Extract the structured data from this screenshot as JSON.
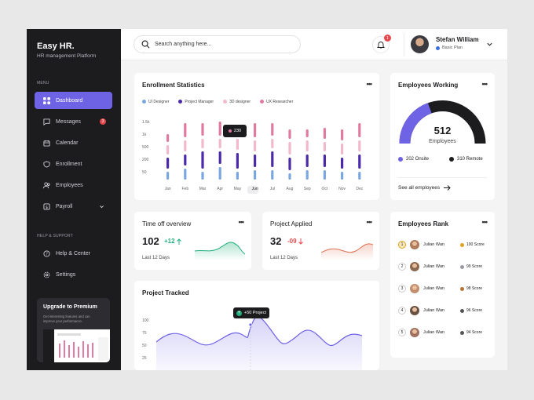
{
  "sidebar": {
    "brand": "Easy HR.",
    "brand_sub": "HR management Platform",
    "menu_label": "MENU",
    "items": [
      {
        "label": "Dashboard",
        "icon": "grid-icon"
      },
      {
        "label": "Messages",
        "icon": "chat-icon",
        "badge": "3"
      },
      {
        "label": "Calendar",
        "icon": "calendar-icon"
      },
      {
        "label": "Enrollment",
        "icon": "shield-icon"
      },
      {
        "label": "Employees",
        "icon": "users-icon"
      },
      {
        "label": "Payroll",
        "icon": "dollar-icon"
      }
    ],
    "support_label": "HELP & SUPPORT",
    "support_items": [
      {
        "label": "Help & Center",
        "icon": "help-icon"
      },
      {
        "label": "Settings",
        "icon": "gear-icon"
      }
    ],
    "promo": {
      "title": "Upgrade to Premium",
      "text": "Get interesting features and can improve your performance."
    }
  },
  "topbar": {
    "search_placeholder": "Search anything here...",
    "notif_count": "1",
    "user_name": "Stefan William",
    "user_plan": "Basic Plan"
  },
  "enrollment": {
    "title": "Enrollment Statistics",
    "legend": [
      {
        "name": "UI Designer",
        "color": "#7aa7e0"
      },
      {
        "name": "Project Manager",
        "color": "#4b2aa8"
      },
      {
        "name": "3D designer",
        "color": "#f2b8cc"
      },
      {
        "name": "UX Researcher",
        "color": "#e07aa0"
      }
    ],
    "y_ticks": [
      "1.5k",
      "1k",
      "500",
      "200",
      "50"
    ],
    "months": [
      "Jan",
      "Feb",
      "Mar",
      "Apr",
      "May",
      "Jun",
      "Jul",
      "Aug",
      "Sep",
      "Oct",
      "Nov",
      "Dec"
    ],
    "tooltip": "230"
  },
  "employees_working": {
    "title": "Employees Working",
    "total": "512",
    "total_label": "Employees",
    "onsite_fraction": 0.39,
    "onsite": "202 Onsite",
    "remote": "310 Remote",
    "see_all": "See all employees"
  },
  "time_off": {
    "title": "Time off overview",
    "value": "102",
    "delta": "+12",
    "period": "Last 12 Days"
  },
  "project_applied": {
    "title": "Project Applied",
    "value": "32",
    "delta": "-09",
    "period": "Last 12 Days"
  },
  "project_tracked": {
    "title": "Project Tracked",
    "y_ticks": [
      "100",
      "75",
      "50",
      "25"
    ],
    "tooltip": "+50 Project"
  },
  "rank": {
    "title": "Employees Rank",
    "rows": [
      {
        "num": "1",
        "name": "Julian Wan",
        "score": "100 Score",
        "color": "#e0a020"
      },
      {
        "num": "2",
        "name": "Julian Wan",
        "score": "99 Score",
        "color": "#9a9aa3"
      },
      {
        "num": "3",
        "name": "Julian Wan",
        "score": "98 Score",
        "color": "#b87333"
      },
      {
        "num": "4",
        "name": "Julian Wan",
        "score": "96 Score",
        "color": "#555555"
      },
      {
        "num": "5",
        "name": "Julian Wan",
        "score": "94 Score",
        "color": "#555555"
      }
    ]
  },
  "colors": {
    "accent": "#6e62e5",
    "sidebar_bg": "#1c1c1f",
    "green": "#22b07d",
    "red": "#e5484d"
  }
}
